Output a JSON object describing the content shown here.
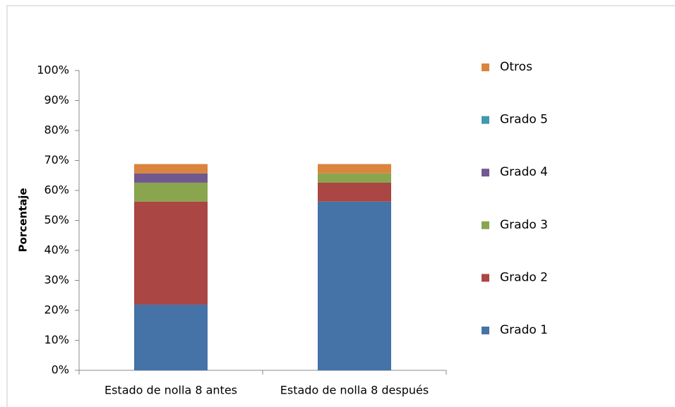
{
  "chart_data": {
    "type": "stacked_bar",
    "y_label": "Porcentaje",
    "categories": [
      "Estado de nolla 8 antes",
      "Estado de nolla 8 después"
    ],
    "series": [
      {
        "name": "Grado 1",
        "color": "#4572a7",
        "values": [
          21.9,
          56.3
        ]
      },
      {
        "name": "Grado 2",
        "color": "#aa4643",
        "values": [
          34.4,
          6.3
        ]
      },
      {
        "name": "Grado 3",
        "color": "#89a54e",
        "values": [
          6.3,
          3.1
        ]
      },
      {
        "name": "Grado 4",
        "color": "#71588f",
        "values": [
          3.1,
          0
        ]
      },
      {
        "name": "Grado 5",
        "color": "#4198af",
        "values": [
          0,
          0
        ]
      },
      {
        "name": "Otros",
        "color": "#db843d",
        "values": [
          3.1,
          3.1
        ]
      }
    ],
    "ylim": [
      0,
      100
    ],
    "yticks": [
      {
        "value": 0,
        "label": "0%"
      },
      {
        "value": 10,
        "label": "10%"
      },
      {
        "value": 20,
        "label": "20%"
      },
      {
        "value": 30,
        "label": "30%"
      },
      {
        "value": 40,
        "label": "40%"
      },
      {
        "value": 50,
        "label": "50%"
      },
      {
        "value": 60,
        "label": "60%"
      },
      {
        "value": 70,
        "label": "70%"
      },
      {
        "value": 80,
        "label": "80%"
      },
      {
        "value": 90,
        "label": "90%"
      },
      {
        "value": 100,
        "label": "100%"
      }
    ],
    "grid": false,
    "legend": "right"
  }
}
